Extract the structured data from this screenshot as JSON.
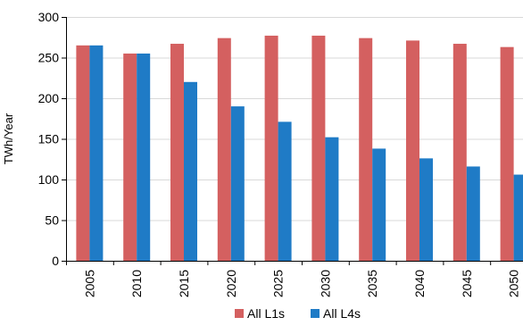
{
  "chart_data": {
    "type": "bar",
    "title": "",
    "xlabel": "",
    "ylabel": "TWh/Year",
    "ylim": [
      0,
      300
    ],
    "yticks": [
      0,
      50,
      100,
      150,
      200,
      250,
      300
    ],
    "grid": "horizontal major gridlines",
    "legend_position": "bottom",
    "categories": [
      "2005",
      "2010",
      "2015",
      "2020",
      "2025",
      "2030",
      "2035",
      "2040",
      "2045",
      "2050"
    ],
    "series": [
      {
        "name": "All L1s",
        "color": "#d46060",
        "values": [
          265,
          255,
          267,
          274,
          277,
          277,
          274,
          271,
          267,
          263
        ]
      },
      {
        "name": "All L4s",
        "color": "#1f7bc6",
        "values": [
          265,
          255,
          220,
          190,
          171,
          152,
          138,
          126,
          116,
          106
        ]
      }
    ]
  }
}
